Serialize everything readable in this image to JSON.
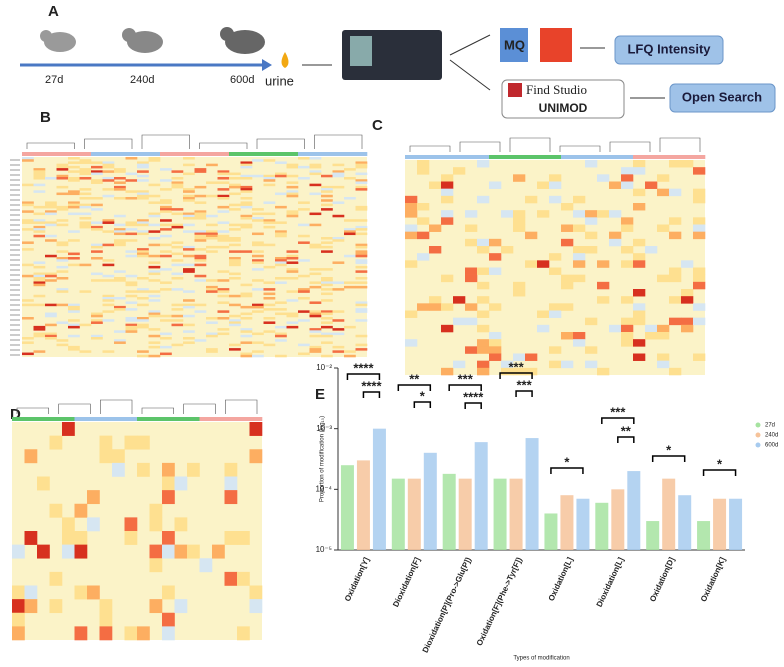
{
  "panels": {
    "a": "A",
    "b": "B",
    "c": "C",
    "d": "D",
    "e": "E"
  },
  "workflow": {
    "ages": [
      "27d",
      "240d",
      "600d"
    ],
    "sample": "urine",
    "mq": "MQ",
    "lfq": "LFQ Intensity",
    "pfind": "Find Studio",
    "unimod": "UNIMOD",
    "open": "Open Search"
  },
  "chart_data": {
    "type": "bar",
    "ylabel": "Proportion of modification (log₁₀)",
    "xlabel": "Types of modification",
    "categories": [
      "Oxidation[Y]",
      "Dioxidation[F]",
      "Dioxidation[P](Pro->Glu[P])",
      "Oxidation[F](Phe->Tyr[F])",
      "Oxidation[L]",
      "Dioxidation[L]",
      "Oxidation[D]",
      "Oxidation[K]"
    ],
    "series": [
      {
        "name": "27d",
        "color": "#a6e3a0",
        "values": [
          0.00025,
          0.00015,
          0.00018,
          0.00015,
          4e-05,
          6e-05,
          3e-05,
          3e-05
        ]
      },
      {
        "name": "240d",
        "color": "#f6c39a",
        "values": [
          0.0003,
          0.00015,
          0.00015,
          0.00015,
          8e-05,
          0.0001,
          0.00015,
          7e-05
        ]
      },
      {
        "name": "600d",
        "color": "#a7cbef",
        "values": [
          0.001,
          0.0004,
          0.0006,
          0.0007,
          7e-05,
          0.0002,
          8e-05,
          7e-05
        ]
      }
    ],
    "log_scale": true,
    "ylim": [
      1e-05,
      0.01
    ],
    "yticks": [
      {
        "value": 1e-05,
        "label": "10⁻⁵"
      },
      {
        "value": 0.0001,
        "label": "10⁻⁴"
      },
      {
        "value": 0.001,
        "label": "10⁻³"
      },
      {
        "value": 0.01,
        "label": "10⁻²"
      }
    ],
    "annotations": [
      "****",
      "****",
      "**",
      "*",
      "***",
      "****",
      "***",
      "***",
      "*",
      "***",
      "**",
      "*",
      "*"
    ],
    "legend": "right"
  }
}
